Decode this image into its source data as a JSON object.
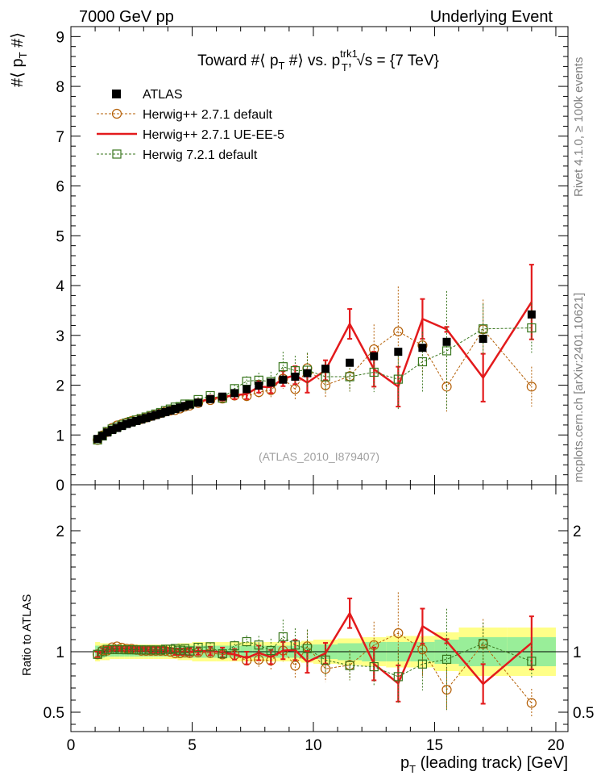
{
  "header": {
    "left": "7000 GeV pp",
    "right": "Underlying Event"
  },
  "side_labels": {
    "rivet": "Rivet 4.1.0, ≥ 100k events",
    "mcplots": "mcplots.cern.ch [arXiv:2401.10621]"
  },
  "chart_data": {
    "type": "line",
    "title": {
      "prefix": "Toward #⟨ p",
      "sub1": "T",
      "mid": " #⟩ vs. p",
      "sup2": "trk1",
      "sub2": "T",
      "suffix": ", √s = {7 TeV}"
    },
    "ylabel": {
      "main": "#⟨ p",
      "sub": "T",
      "tail": " #⟩"
    },
    "ratio_ylabel": "Ratio to ATLAS",
    "xlabel": {
      "main": "p",
      "sub": "T",
      "tail": " (leading track) [GeV]"
    },
    "watermark": "(ATLAS_2010_I879407)",
    "xlim": [
      0,
      20.5
    ],
    "ylim": [
      0,
      9.2
    ],
    "ratio_ylim": [
      0.34,
      2.38
    ],
    "x_ticks": [
      "0",
      "5",
      "10",
      "15",
      "20"
    ],
    "y_ticks": [
      "0",
      "1",
      "2",
      "3",
      "4",
      "5",
      "6",
      "7",
      "8",
      "9"
    ],
    "ratio_ticks": [
      "0.5",
      "1",
      "2"
    ],
    "x": [
      1.1,
      1.3,
      1.5,
      1.7,
      1.9,
      2.1,
      2.3,
      2.5,
      2.7,
      2.9,
      3.1,
      3.3,
      3.5,
      3.7,
      3.9,
      4.1,
      4.3,
      4.5,
      4.7,
      4.9,
      5.25,
      5.75,
      6.25,
      6.75,
      7.25,
      7.75,
      8.25,
      8.75,
      9.25,
      9.75,
      10.5,
      11.5,
      12.5,
      13.5,
      14.5,
      15.5,
      17.0,
      19.0
    ],
    "xerr": [
      0.1,
      0.1,
      0.1,
      0.1,
      0.1,
      0.1,
      0.1,
      0.1,
      0.1,
      0.1,
      0.1,
      0.1,
      0.1,
      0.1,
      0.1,
      0.1,
      0.1,
      0.1,
      0.1,
      0.1,
      0.25,
      0.25,
      0.25,
      0.25,
      0.25,
      0.25,
      0.25,
      0.25,
      0.25,
      0.25,
      0.5,
      0.5,
      0.5,
      0.5,
      0.5,
      0.5,
      1.0,
      1.0
    ],
    "series": [
      {
        "name": "ATLAS",
        "style": "data",
        "color": "#000000",
        "values": [
          0.92,
          0.98,
          1.05,
          1.1,
          1.14,
          1.18,
          1.22,
          1.25,
          1.28,
          1.31,
          1.34,
          1.37,
          1.4,
          1.43,
          1.46,
          1.49,
          1.52,
          1.55,
          1.58,
          1.61,
          1.65,
          1.72,
          1.77,
          1.84,
          1.92,
          1.99,
          2.05,
          2.11,
          2.17,
          2.24,
          2.33,
          2.45,
          2.58,
          2.67,
          2.75,
          2.87,
          2.93,
          3.42
        ],
        "band": [
          0.05,
          0.05,
          0.04,
          0.04,
          0.04,
          0.04,
          0.04,
          0.04,
          0.04,
          0.04,
          0.04,
          0.04,
          0.04,
          0.04,
          0.04,
          0.04,
          0.04,
          0.05,
          0.05,
          0.05,
          0.05,
          0.05,
          0.05,
          0.05,
          0.05,
          0.05,
          0.05,
          0.05,
          0.05,
          0.06,
          0.06,
          0.07,
          0.08,
          0.08,
          0.08,
          0.1,
          0.12,
          0.12
        ],
        "band_outer": [
          0.08,
          0.07,
          0.07,
          0.06,
          0.06,
          0.06,
          0.06,
          0.06,
          0.06,
          0.06,
          0.06,
          0.06,
          0.06,
          0.06,
          0.06,
          0.06,
          0.06,
          0.07,
          0.07,
          0.07,
          0.08,
          0.08,
          0.08,
          0.08,
          0.08,
          0.08,
          0.08,
          0.08,
          0.08,
          0.09,
          0.1,
          0.11,
          0.12,
          0.13,
          0.13,
          0.16,
          0.2,
          0.2
        ]
      },
      {
        "name": "Herwig++ 2.7.1 default",
        "style": "circle-dashed",
        "color": "#b45f06",
        "values": [
          0.9,
          0.99,
          1.06,
          1.14,
          1.19,
          1.22,
          1.25,
          1.28,
          1.3,
          1.32,
          1.35,
          1.38,
          1.41,
          1.44,
          1.47,
          1.49,
          1.5,
          1.53,
          1.57,
          1.59,
          1.64,
          1.7,
          1.73,
          1.79,
          1.78,
          1.86,
          1.9,
          2.13,
          1.92,
          2.34,
          2.0,
          2.18,
          2.72,
          3.08,
          2.8,
          1.97,
          3.12,
          1.97
        ],
        "err": [
          0.02,
          0.02,
          0.02,
          0.02,
          0.02,
          0.02,
          0.02,
          0.02,
          0.02,
          0.02,
          0.02,
          0.03,
          0.03,
          0.03,
          0.03,
          0.03,
          0.04,
          0.04,
          0.04,
          0.05,
          0.05,
          0.06,
          0.07,
          0.08,
          0.1,
          0.12,
          0.15,
          0.2,
          0.22,
          0.3,
          0.25,
          0.3,
          0.5,
          0.9,
          0.6,
          0.5,
          0.6,
          0.4
        ]
      },
      {
        "name": "Herwig++ 2.7.1 UE-EE-5",
        "style": "line",
        "color": "#e31a1c",
        "values": [
          0.9,
          0.99,
          1.07,
          1.13,
          1.17,
          1.21,
          1.25,
          1.28,
          1.31,
          1.34,
          1.37,
          1.39,
          1.42,
          1.45,
          1.48,
          1.5,
          1.52,
          1.55,
          1.58,
          1.61,
          1.66,
          1.73,
          1.76,
          1.8,
          1.82,
          1.97,
          1.96,
          2.13,
          2.2,
          2.05,
          2.3,
          3.23,
          2.32,
          1.97,
          3.33,
          3.12,
          2.15,
          3.67
        ],
        "err": [
          0.02,
          0.02,
          0.02,
          0.02,
          0.02,
          0.02,
          0.02,
          0.02,
          0.02,
          0.02,
          0.02,
          0.03,
          0.03,
          0.03,
          0.03,
          0.03,
          0.04,
          0.04,
          0.04,
          0.05,
          0.05,
          0.06,
          0.07,
          0.08,
          0.1,
          0.12,
          0.12,
          0.15,
          0.18,
          0.2,
          0.2,
          0.3,
          0.35,
          0.4,
          0.4,
          0.05,
          0.48,
          0.75
        ]
      },
      {
        "name": "Herwig 7.2.1 default",
        "style": "square-dashed",
        "color": "#38761d",
        "values": [
          0.9,
          0.98,
          1.07,
          1.12,
          1.16,
          1.2,
          1.24,
          1.27,
          1.3,
          1.33,
          1.36,
          1.39,
          1.42,
          1.45,
          1.49,
          1.52,
          1.56,
          1.57,
          1.62,
          1.62,
          1.71,
          1.79,
          1.74,
          1.93,
          2.08,
          2.1,
          2.07,
          2.37,
          2.29,
          2.3,
          2.17,
          2.17,
          2.26,
          2.12,
          2.47,
          2.69,
          3.13,
          3.15
        ],
        "err": [
          0.02,
          0.02,
          0.02,
          0.02,
          0.02,
          0.02,
          0.02,
          0.02,
          0.02,
          0.02,
          0.02,
          0.03,
          0.03,
          0.03,
          0.03,
          0.03,
          0.04,
          0.04,
          0.04,
          0.05,
          0.05,
          0.06,
          0.07,
          0.08,
          0.1,
          0.15,
          0.2,
          0.3,
          0.3,
          0.35,
          0.3,
          0.3,
          0.4,
          0.6,
          0.6,
          1.2,
          0.5,
          0.5
        ]
      }
    ]
  }
}
